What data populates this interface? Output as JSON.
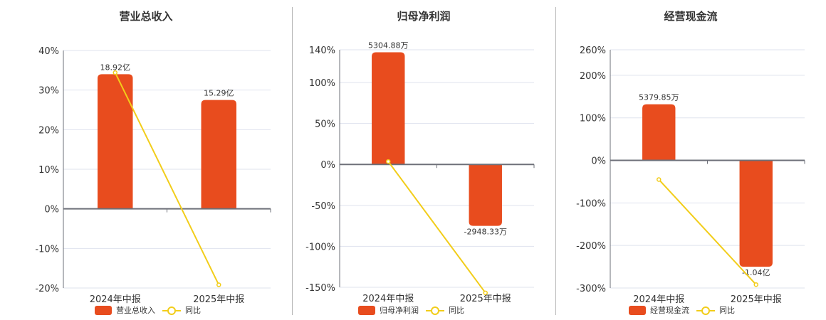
{
  "colors": {
    "bar": "#e84c1e",
    "line": "#f2cd1a",
    "grid": "#dfe3ee",
    "axis": "#6e7079"
  },
  "categories": [
    "2024年中报",
    "2025年中报"
  ],
  "panels": [
    {
      "title": "营业总收入",
      "legend": {
        "bar": "营业总收入",
        "line": "同比"
      },
      "yticks": [
        "40%",
        "30%",
        "20%",
        "10%",
        "0%",
        "-10%",
        "-20%"
      ],
      "bar_labels": [
        "18.92亿",
        "15.29亿"
      ]
    },
    {
      "title": "归母净利润",
      "legend": {
        "bar": "归母净利润",
        "line": "同比"
      },
      "yticks": [
        "140%",
        "100%",
        "50%",
        "0%",
        "-50%",
        "-100%",
        "-150%"
      ],
      "bar_labels": [
        "5304.88万",
        "-2948.33万"
      ]
    },
    {
      "title": "经营现金流",
      "legend": {
        "bar": "经营现金流",
        "line": "同比"
      },
      "yticks": [
        "260%",
        "200%",
        "100%",
        "0%",
        "-100%",
        "-200%",
        "-300%"
      ],
      "bar_labels": [
        "5379.85万",
        "-1.04亿"
      ]
    }
  ],
  "chart_data": [
    {
      "type": "bar",
      "title": "营业总收入",
      "categories": [
        "2024年中报",
        "2025年中报"
      ],
      "series": [
        {
          "name": "营业总收入",
          "type": "bar",
          "values": [
            18.92,
            15.29
          ],
          "unit": "亿",
          "plotted_pct": [
            34.0,
            27.5
          ]
        },
        {
          "name": "同比",
          "type": "line",
          "values": [
            34.4,
            -19.2
          ],
          "unit": "%"
        }
      ],
      "ylim": [
        -20,
        40
      ],
      "yticks": [
        40,
        30,
        20,
        10,
        0,
        -10,
        -20
      ],
      "legend_position": "bottom",
      "grid": true
    },
    {
      "type": "bar",
      "title": "归母净利润",
      "categories": [
        "2024年中报",
        "2025年中报"
      ],
      "series": [
        {
          "name": "归母净利润",
          "type": "bar",
          "values": [
            5304.88,
            -2948.33
          ],
          "unit": "万",
          "plotted_pct": [
            137,
            -75
          ]
        },
        {
          "name": "同比",
          "type": "line",
          "values": [
            3.6,
            -156.8
          ],
          "unit": "%"
        }
      ],
      "ylim": [
        -160,
        140
      ],
      "yticks": [
        140,
        100,
        50,
        0,
        -50,
        -100,
        -150
      ],
      "legend_position": "bottom",
      "grid": true
    },
    {
      "type": "bar",
      "title": "经营现金流",
      "categories": [
        "2024年中报",
        "2025年中报"
      ],
      "series": [
        {
          "name": "经营现金流",
          "type": "bar",
          "values": [
            5379.85,
            -10400
          ],
          "unit": "万",
          "plotted_pct": [
            132,
            -250
          ]
        },
        {
          "name": "同比",
          "type": "line",
          "values": [
            -45,
            -292
          ],
          "unit": "%"
        }
      ],
      "ylim": [
        -300,
        260
      ],
      "yticks": [
        260,
        200,
        100,
        0,
        -100,
        -200,
        -300
      ],
      "legend_position": "bottom",
      "grid": true
    }
  ]
}
